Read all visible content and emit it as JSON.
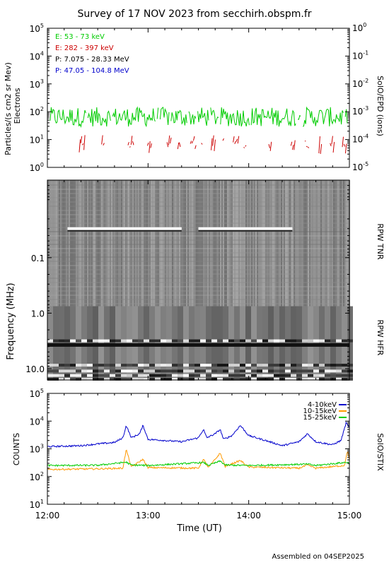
{
  "title": "Survey of 17 NOV 2023 from secchirh.obspm.fr",
  "footer": "Assembled on 04SEP2025",
  "chart_data": [
    {
      "type": "line",
      "panel": "SolO/EPD",
      "right_label": "SolO/EPD (ions)",
      "ylabel_line1": "Particles/(s cm2 sr Mev)",
      "ylabel_line2": "Electrons",
      "ylim": [
        1,
        100000
      ],
      "right_ylim": [
        1e-05,
        1
      ],
      "yscale": "log",
      "yticks": [
        1,
        10,
        100,
        1000,
        10000,
        100000
      ],
      "ytick_labels": [
        "10^0",
        "10^1",
        "10^2",
        "10^3",
        "10^4",
        "10^5"
      ],
      "right_yticks": [
        1e-05,
        0.0001,
        0.001,
        0.01,
        0.1,
        1
      ],
      "right_ytick_labels": [
        "10^-5",
        "10^-4",
        "10^-3",
        "10^-2",
        "10^-1",
        "10^0"
      ],
      "legend_position": "top-left",
      "series": [
        {
          "name": "E: 53 - 73 keV",
          "color": "#00cc00",
          "level": 65,
          "spread": 0.35
        },
        {
          "name": "E: 282 - 397 keV",
          "color": "#cc0000",
          "level": 6,
          "spread": 0.25
        },
        {
          "name": "P: 7.075 - 28.33 MeV",
          "color": "#000000"
        },
        {
          "name": "P: 47.05 - 104.8 MeV",
          "color": "#0000cc"
        }
      ]
    },
    {
      "type": "heatmap",
      "panel": "RPW",
      "ylabel": "Frequency (MHz)",
      "yscale": "log",
      "ylim": [
        0.004,
        16
      ],
      "yticks": [
        0.1,
        1.0,
        10.0
      ],
      "ytick_labels": [
        "0.1",
        "1.0",
        "10.0"
      ],
      "right_labels": [
        "RPW TNR",
        "RPW HFR"
      ],
      "colormap": "grayscale",
      "events": [
        {
          "name": "bright band",
          "freq_mhz": 0.03,
          "start": "12:12",
          "end": "13:20"
        },
        {
          "name": "bright band",
          "freq_mhz": 0.03,
          "start": "13:30",
          "end": "14:26"
        },
        {
          "name": "dark band",
          "freq_mhz": 3.8,
          "start": "12:00",
          "end": "15:00"
        }
      ]
    },
    {
      "type": "line",
      "panel": "SolO/STIX",
      "right_label": "SolO/STIX",
      "ylabel": "COUNTS",
      "xlabel": "Time (UT)",
      "yscale": "log",
      "ylim": [
        10,
        100000
      ],
      "yticks": [
        10,
        100,
        1000,
        10000,
        100000
      ],
      "ytick_labels": [
        "10^1",
        "10^2",
        "10^3",
        "10^4",
        "10^5"
      ],
      "x_range": [
        "12:00",
        "15:00"
      ],
      "xticks": [
        "12:00",
        "13:00",
        "14:00",
        "15:00"
      ],
      "legend_position": "top-right",
      "series": [
        {
          "name": "4-10keV",
          "color": "#0000cc",
          "x": [
            "12:00",
            "12:20",
            "12:30",
            "12:40",
            "12:45",
            "12:47",
            "12:50",
            "12:55",
            "12:57",
            "13:00",
            "13:10",
            "13:20",
            "13:30",
            "13:33",
            "13:35",
            "13:40",
            "13:43",
            "13:45",
            "13:50",
            "13:55",
            "14:00",
            "14:10",
            "14:20",
            "14:30",
            "14:35",
            "14:40",
            "14:50",
            "14:55",
            "14:58",
            "15:00"
          ],
          "y": [
            1200,
            1300,
            1500,
            1700,
            2500,
            7000,
            2500,
            3500,
            7000,
            2200,
            2000,
            1800,
            2500,
            5000,
            2500,
            3500,
            5000,
            2200,
            3000,
            7000,
            3000,
            2000,
            1300,
            1800,
            3500,
            1800,
            1400,
            2000,
            8500,
            6000
          ]
        },
        {
          "name": "10-15keV",
          "color": "#ff9900",
          "x": [
            "12:00",
            "12:30",
            "12:45",
            "12:47",
            "12:50",
            "12:57",
            "13:00",
            "13:30",
            "13:33",
            "13:36",
            "13:43",
            "13:46",
            "13:55",
            "14:00",
            "14:30",
            "14:35",
            "14:40",
            "14:57",
            "14:59",
            "15:00"
          ],
          "y": [
            180,
            190,
            200,
            950,
            220,
            420,
            210,
            200,
            420,
            210,
            700,
            230,
            380,
            220,
            200,
            260,
            200,
            250,
            900,
            400
          ]
        },
        {
          "name": "15-25keV",
          "color": "#00cc00",
          "x": [
            "12:00",
            "12:30",
            "12:47",
            "12:50",
            "13:00",
            "13:33",
            "13:36",
            "13:43",
            "13:46",
            "14:00",
            "14:35",
            "14:40",
            "14:59",
            "15:00"
          ],
          "y": [
            250,
            255,
            330,
            260,
            250,
            320,
            255,
            360,
            260,
            250,
            280,
            250,
            330,
            280
          ]
        }
      ]
    }
  ]
}
